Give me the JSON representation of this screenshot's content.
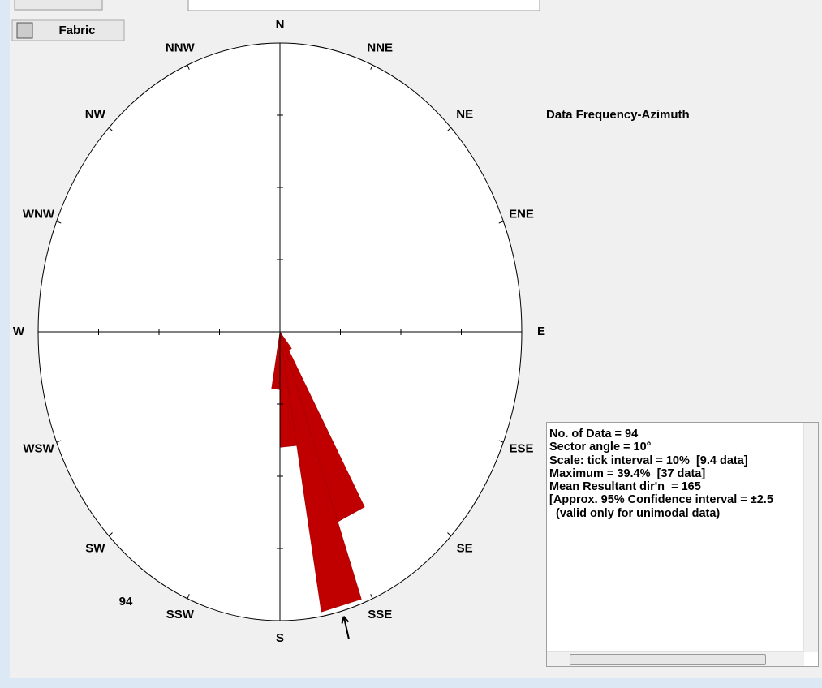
{
  "chart_data": {
    "type": "rose",
    "button": "Fabric",
    "title": "Data Frequency-Azimuth",
    "count_label": "94",
    "directions": [
      "N",
      "NNE",
      "NE",
      "ENE",
      "E",
      "ESE",
      "SE",
      "SSE",
      "S",
      "SSW",
      "SW",
      "WSW",
      "W",
      "WNW",
      "NW",
      "NNW"
    ],
    "sector_start": [
      140,
      150,
      160,
      170,
      180
    ],
    "sector_width": 10,
    "values": [
      3,
      28,
      39.4,
      16,
      8
    ],
    "color": "#c00000",
    "rlim": [
      0,
      40
    ],
    "rticks": [
      10,
      20,
      30
    ],
    "mean_direction": 165,
    "info": [
      "No. of Data = 94",
      "Sector angle = 10°",
      "Scale: tick interval = 10%  [9.4 data]",
      "Maximum = 39.4%  [37 data]",
      "Mean Resultant dir'n  = 165",
      "[Approx. 95% Confidence interval = ±2.5",
      "  (valid only for unimodal data)"
    ]
  }
}
